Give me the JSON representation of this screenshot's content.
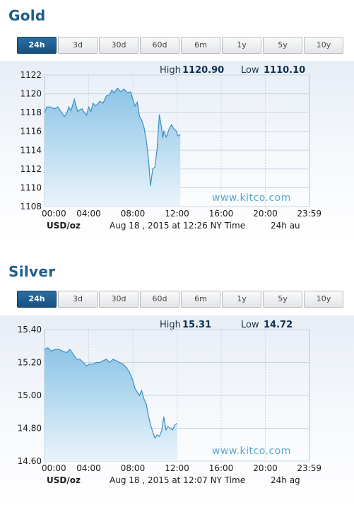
{
  "gold": {
    "title": "Gold",
    "tabs": [
      "24h",
      "3d",
      "30d",
      "60d",
      "6m",
      "1y",
      "5y",
      "10y"
    ],
    "active_tab": "24h",
    "high_label": "High",
    "high_value": "1120.90",
    "low_label": "Low",
    "low_value": "1110.10",
    "watermark": "www.kitco.com",
    "unit": "USD/oz",
    "timestamp": "Aug 18 , 2015 at 12:26 NY Time",
    "footer_right": "24h au"
  },
  "silver": {
    "title": "Silver",
    "tabs": [
      "24h",
      "3d",
      "30d",
      "60d",
      "6m",
      "1y",
      "5y",
      "10y"
    ],
    "active_tab": "24h",
    "high_label": "High",
    "high_value": "15.31",
    "low_label": "Low",
    "low_value": "14.72",
    "watermark": "www.kitco.com",
    "unit": "USD/oz",
    "timestamp": "Aug 18 , 2015 at 12:07 NY Time",
    "footer_right": "24h ag"
  },
  "colors": {
    "title": "#1b5f8c",
    "active_tab": "#1e6095",
    "line": "#3b8fc4",
    "fill_top": "#8cc4e6",
    "fill_bottom": "#e9f4fb",
    "watermark": "#5aa7cf"
  },
  "chart_data": [
    {
      "type": "area",
      "title": "Gold",
      "xlabel": "",
      "ylabel": "USD/oz",
      "xlim": [
        0,
        24
      ],
      "ylim": [
        1108,
        1122
      ],
      "x_ticks": [
        "00:00",
        "04:00",
        "08:00",
        "12:00",
        "16:00",
        "20:00",
        "23:59"
      ],
      "y_ticks": [
        1108,
        1110,
        1112,
        1114,
        1116,
        1118,
        1120,
        1122
      ],
      "grid": true,
      "series": [
        {
          "x": [
            0,
            0.2,
            0.5,
            0.9,
            1.2,
            1.5,
            1.8,
            2.0,
            2.2,
            2.4,
            2.7,
            3.0,
            3.2,
            3.4,
            3.6,
            3.8,
            4.0,
            4.2,
            4.4,
            4.6,
            4.8,
            5.0,
            5.3,
            5.6,
            5.9,
            6.1,
            6.3,
            6.6,
            6.9,
            7.2,
            7.5,
            7.8,
            8.0,
            8.2,
            8.4,
            8.6,
            8.8,
            9.0,
            9.2,
            9.4,
            9.6,
            9.8,
            10.0,
            10.2,
            10.4,
            10.6,
            10.7,
            10.8,
            10.9,
            11.0,
            11.1,
            11.3,
            11.5,
            11.7,
            11.9,
            12.1,
            12.3
          ],
          "y": [
            1118.0,
            1118.6,
            1118.6,
            1118.4,
            1118.6,
            1118.1,
            1117.6,
            1117.9,
            1118.6,
            1118.2,
            1119.4,
            1118.1,
            1118.3,
            1118.4,
            1118.0,
            1117.7,
            1118.6,
            1118.1,
            1119.0,
            1118.7,
            1118.9,
            1119.2,
            1119.0,
            1119.8,
            1119.9,
            1120.4,
            1120.1,
            1120.6,
            1120.2,
            1120.5,
            1120.1,
            1120.2,
            1119.4,
            1118.7,
            1119.1,
            1117.6,
            1117.2,
            1116.5,
            1115.2,
            1113.2,
            1110.2,
            1112.0,
            1112.2,
            1114.2,
            1117.8,
            1116.4,
            1115.3,
            1116.0,
            1115.8,
            1115.4,
            1115.6,
            1116.3,
            1116.7,
            1116.3,
            1116.1,
            1115.5,
            1115.7
          ]
        }
      ]
    },
    {
      "type": "area",
      "title": "Silver",
      "xlabel": "",
      "ylabel": "USD/oz",
      "xlim": [
        0,
        24
      ],
      "ylim": [
        14.6,
        15.4
      ],
      "x_ticks": [
        "00:00",
        "04:00",
        "08:00",
        "12:00",
        "16:00",
        "20:00",
        "23:59"
      ],
      "y_ticks": [
        "14.60",
        "14.80",
        "15.00",
        "15.20",
        "15.40"
      ],
      "grid": true,
      "series": [
        {
          "x": [
            0,
            0.3,
            0.6,
            1.0,
            1.3,
            1.6,
            2.0,
            2.3,
            2.6,
            2.9,
            3.2,
            3.5,
            3.8,
            4.1,
            4.4,
            4.7,
            5.0,
            5.3,
            5.6,
            5.9,
            6.2,
            6.5,
            6.8,
            7.1,
            7.4,
            7.7,
            8.0,
            8.2,
            8.4,
            8.6,
            8.8,
            9.0,
            9.2,
            9.4,
            9.6,
            9.8,
            10.0,
            10.2,
            10.4,
            10.6,
            10.8,
            11.0,
            11.2,
            11.4,
            11.6,
            11.8,
            12.0
          ],
          "y": [
            15.28,
            15.29,
            15.27,
            15.28,
            15.28,
            15.27,
            15.26,
            15.28,
            15.25,
            15.22,
            15.22,
            15.2,
            15.18,
            15.19,
            15.19,
            15.2,
            15.2,
            15.21,
            15.22,
            15.2,
            15.22,
            15.21,
            15.2,
            15.19,
            15.17,
            15.14,
            15.09,
            15.04,
            15.02,
            15.0,
            15.03,
            14.98,
            14.95,
            14.88,
            14.82,
            14.78,
            14.74,
            14.76,
            14.75,
            14.78,
            14.87,
            14.79,
            14.81,
            14.8,
            14.79,
            14.82,
            14.83
          ]
        }
      ]
    }
  ]
}
